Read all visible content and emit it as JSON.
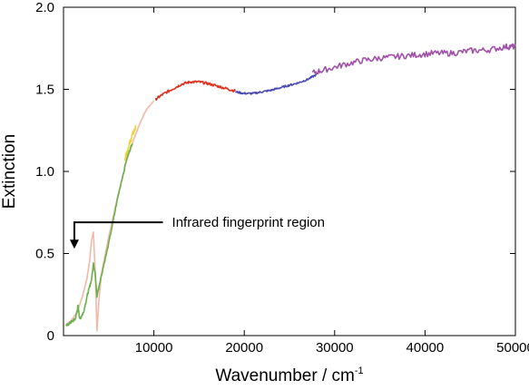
{
  "chart_data": {
    "type": "line",
    "title": "",
    "xlabel": "Wavenumber / cm",
    "xlabel_superscript": "-1",
    "ylabel": "Extinction",
    "xlim": [
      0,
      50000
    ],
    "ylim": [
      0,
      2.0
    ],
    "x_ticks": [
      10000,
      20000,
      30000,
      40000,
      50000
    ],
    "x_tick_labels": [
      "10000",
      "20000",
      "30000",
      "40000",
      "50000"
    ],
    "y_ticks": [
      0,
      0.5,
      1.0,
      1.5,
      2.0
    ],
    "y_tick_labels": [
      "0",
      "0.5",
      "1.0",
      "1.5",
      "2.0"
    ],
    "grid": false,
    "legend": "none",
    "annotation": {
      "text": "Infrared fingerprint region",
      "arrow_from": [
        11000,
        0.69
      ],
      "arrow_corner": [
        1200,
        0.69
      ],
      "arrow_to": [
        1200,
        0.54
      ]
    },
    "series": [
      {
        "color": "#f2b8a8",
        "noise": 0.002,
        "x": [
          200,
          800,
          1500,
          2100,
          2600,
          2900,
          3100,
          3300,
          3500,
          3700,
          3900,
          4200,
          5000,
          6000,
          7000,
          7800,
          8500,
          9200,
          10000
        ],
        "y": [
          0.06,
          0.09,
          0.14,
          0.24,
          0.35,
          0.46,
          0.58,
          0.63,
          0.4,
          0.03,
          0.2,
          0.38,
          0.6,
          0.85,
          1.07,
          1.2,
          1.3,
          1.38,
          1.43
        ]
      },
      {
        "color": "#6ab04c",
        "noise": 0.008,
        "x": [
          300,
          800,
          1300,
          1600,
          1800,
          2200,
          2700,
          3100,
          3300,
          3500,
          3700,
          4000,
          5000,
          6000,
          7000,
          7600
        ],
        "y": [
          0.06,
          0.08,
          0.1,
          0.18,
          0.1,
          0.14,
          0.26,
          0.34,
          0.44,
          0.38,
          0.24,
          0.32,
          0.56,
          0.84,
          1.08,
          1.17
        ]
      },
      {
        "color": "#ecd43a",
        "noise": 0.015,
        "x": [
          6800,
          7200,
          7600,
          8000
        ],
        "y": [
          1.08,
          1.15,
          1.22,
          1.27
        ]
      },
      {
        "color": "#e03020",
        "noise": 0.008,
        "x": [
          10200,
          11000,
          12000,
          13000,
          14000,
          15000,
          16000,
          17000,
          18000,
          19000
        ],
        "y": [
          1.44,
          1.47,
          1.5,
          1.53,
          1.545,
          1.545,
          1.535,
          1.52,
          1.505,
          1.49
        ]
      },
      {
        "color": "#4a4ab0",
        "noise": 0.006,
        "x": [
          19000,
          20000,
          21000,
          22000,
          23000,
          24000,
          25000,
          26000,
          27000,
          28000
        ],
        "y": [
          1.485,
          1.475,
          1.475,
          1.485,
          1.495,
          1.51,
          1.525,
          1.54,
          1.56,
          1.59
        ]
      },
      {
        "color": "#a050a8",
        "noise": 0.018,
        "x": [
          27500,
          29000,
          31000,
          33000,
          35000,
          37000,
          39000,
          41000,
          43000,
          45000,
          47000,
          49000,
          50000
        ],
        "y": [
          1.6,
          1.62,
          1.65,
          1.675,
          1.69,
          1.7,
          1.71,
          1.72,
          1.72,
          1.735,
          1.74,
          1.76,
          1.76
        ]
      }
    ]
  }
}
